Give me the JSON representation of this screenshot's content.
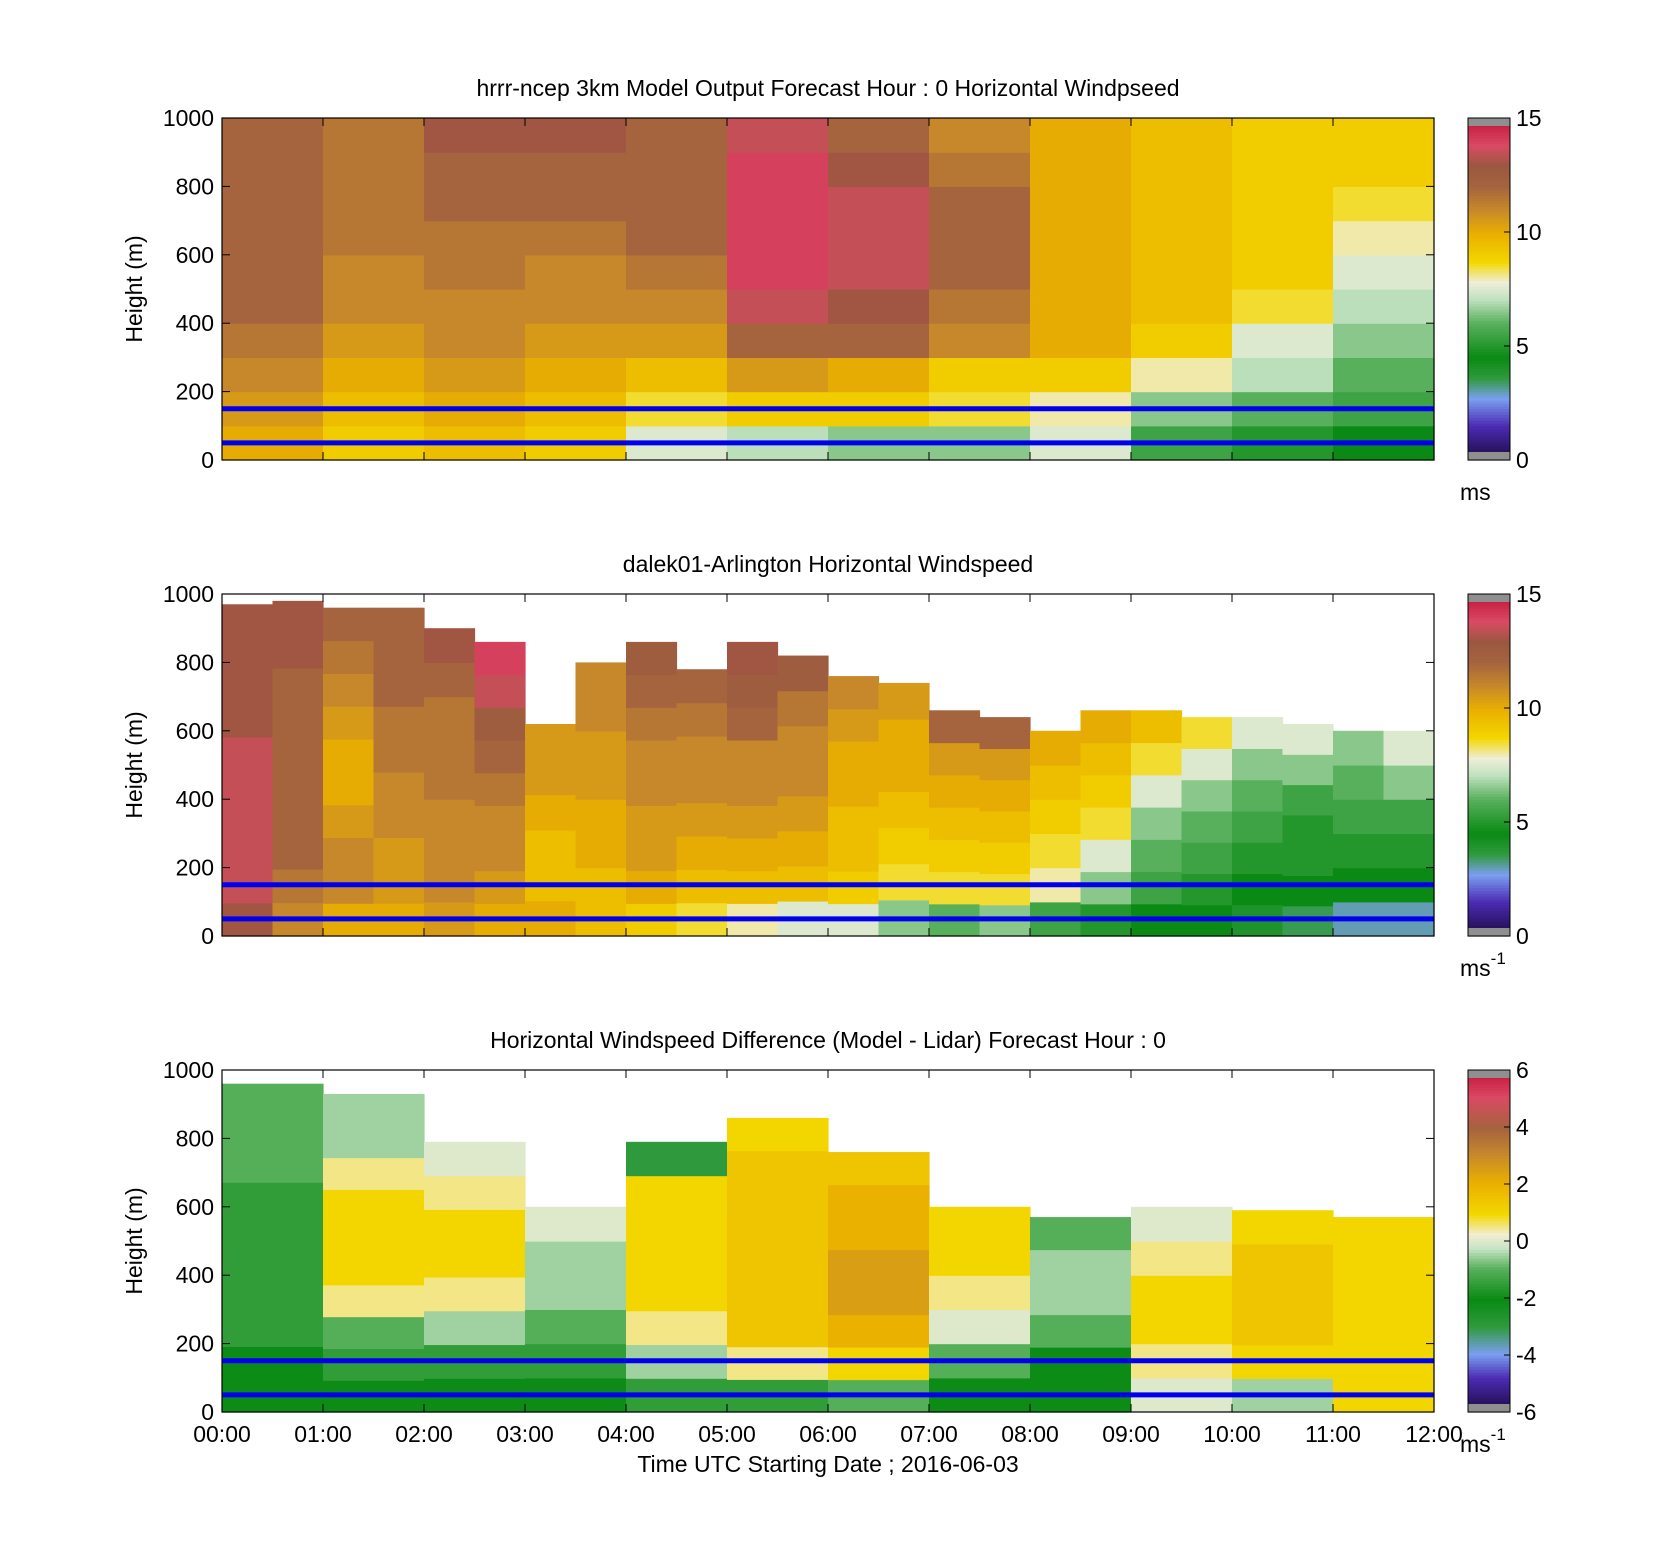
{
  "figure": {
    "xlabel": "Time UTC  Starting Date ; 2016-06-03",
    "x_ticks": [
      "00:00",
      "01:00",
      "02:00",
      "03:00",
      "04:00",
      "05:00",
      "06:00",
      "07:00",
      "08:00",
      "09:00",
      "10:00",
      "11:00",
      "12:00"
    ],
    "y_ticks": [
      "0",
      "200",
      "400",
      "600",
      "800",
      "1000"
    ],
    "reference_lines_m": [
      50,
      150
    ],
    "reference_line_color": "#0000ee"
  },
  "chart_data": [
    {
      "type": "heatmap",
      "title": "hrrr-ncep 3km Model Output   Forecast Hour : 0 Horizontal Windpseed",
      "ylabel": "Height (m)",
      "xlim_hours": [
        0,
        12
      ],
      "ylim": [
        0,
        1000
      ],
      "colorbar": {
        "min": 0,
        "max": 15,
        "ticks": [
          "0",
          "5",
          "10",
          "15"
        ],
        "unit": "ms",
        "unit_sup": "",
        "scale": "speed"
      },
      "columns": [
        {
          "hour": 0,
          "values": [
            10,
            10.5,
            11,
            11.5,
            12,
            12,
            12,
            12,
            12,
            12
          ]
        },
        {
          "hour": 1,
          "values": [
            9,
            9.5,
            10,
            10.5,
            11,
            11,
            11.5,
            11.5,
            11.5,
            11.5
          ]
        },
        {
          "hour": 2,
          "values": [
            9.5,
            10,
            10.5,
            11,
            11,
            11.5,
            11.5,
            12,
            12,
            13
          ]
        },
        {
          "hour": 3,
          "values": [
            9,
            9.5,
            10,
            10.5,
            11,
            11,
            11.5,
            12,
            12,
            13
          ]
        },
        {
          "hour": 4,
          "values": [
            7.5,
            8.5,
            9.5,
            10.5,
            11,
            11.5,
            12,
            12,
            12,
            12
          ]
        },
        {
          "hour": 5,
          "values": [
            7,
            9,
            10.5,
            12,
            13.5,
            14,
            14,
            14,
            14,
            13.5
          ]
        },
        {
          "hour": 6,
          "values": [
            6.5,
            9,
            10,
            12,
            13,
            13.5,
            13.5,
            13.5,
            13,
            12
          ]
        },
        {
          "hour": 7,
          "values": [
            6.5,
            8.5,
            9,
            11,
            11.5,
            12,
            12,
            12,
            11.5,
            11
          ]
        },
        {
          "hour": 8,
          "values": [
            7.5,
            8,
            9,
            10,
            10,
            10,
            10,
            10,
            10,
            10
          ]
        },
        {
          "hour": 9,
          "values": [
            5.5,
            6.5,
            8,
            9,
            9.5,
            9.5,
            9.5,
            9.5,
            9.5,
            9.5
          ]
        },
        {
          "hour": 10,
          "values": [
            5,
            6,
            7,
            7.5,
            8.5,
            9,
            9,
            9,
            9,
            9
          ]
        },
        {
          "hour": 11,
          "values": [
            4.5,
            5.5,
            6,
            6.5,
            7,
            7.5,
            8,
            8.5,
            9,
            9
          ]
        }
      ]
    },
    {
      "type": "heatmap",
      "title": "dalek01-Arlington  Horizontal Windspeed",
      "ylabel": "Height (m)",
      "xlim_hours": [
        0,
        12
      ],
      "ylim": [
        0,
        1000
      ],
      "colorbar": {
        "min": 0,
        "max": 15,
        "ticks": [
          "0",
          "5",
          "10",
          "15"
        ],
        "unit": "ms",
        "unit_sup": "-1",
        "scale": "speed"
      },
      "columns": [
        {
          "hour": 0.0,
          "top": 970,
          "values": [
            13,
            13.5,
            13.5,
            13.5,
            13.5,
            13.5,
            13,
            13,
            13,
            13
          ]
        },
        {
          "hour": 0.5,
          "top": 980,
          "values": [
            11,
            11.5,
            12,
            12,
            12,
            12,
            12,
            12,
            13,
            13
          ]
        },
        {
          "hour": 1.0,
          "top": 960,
          "values": [
            10,
            11,
            11,
            10.5,
            10,
            10,
            10.5,
            11,
            11.5,
            12
          ]
        },
        {
          "hour": 1.5,
          "top": 960,
          "values": [
            10,
            10.5,
            10.5,
            11,
            11,
            11.5,
            11.5,
            12,
            12,
            12
          ]
        },
        {
          "hour": 2.0,
          "top": 900,
          "values": [
            10.5,
            11,
            11,
            11,
            11.5,
            11.5,
            11.5,
            12,
            13
          ],
          "note": ""
        },
        {
          "hour": 2.5,
          "top": 860,
          "values": [
            10,
            10.5,
            11,
            11,
            11.5,
            12,
            12.5,
            13.5,
            14
          ]
        },
        {
          "hour": 3.0,
          "top": 620,
          "values": [
            10,
            9.5,
            9.5,
            10,
            10.5,
            10.5
          ]
        },
        {
          "hour": 3.5,
          "top": 800,
          "values": [
            9.5,
            9.5,
            10,
            10,
            10.5,
            10.5,
            11,
            11
          ]
        },
        {
          "hour": 4.0,
          "top": 860,
          "values": [
            9,
            10,
            10.5,
            10.5,
            11,
            11,
            11.5,
            12,
            12.5
          ]
        },
        {
          "hour": 4.5,
          "top": 780,
          "values": [
            8.5,
            9.5,
            10,
            10.5,
            11,
            11,
            11.5,
            12
          ]
        },
        {
          "hour": 5.0,
          "top": 860,
          "values": [
            8,
            9.5,
            10,
            10.5,
            11,
            11,
            12,
            12.5,
            13
          ]
        },
        {
          "hour": 5.5,
          "top": 820,
          "values": [
            7.5,
            9.5,
            10,
            10.5,
            11,
            11,
            11.5,
            12.5
          ]
        },
        {
          "hour": 6.0,
          "top": 760,
          "values": [
            7.5,
            9,
            9.5,
            9.5,
            10,
            10,
            10.5,
            11
          ]
        },
        {
          "hour": 6.5,
          "top": 740,
          "values": [
            6.5,
            8.5,
            9,
            9.5,
            10,
            10,
            10.5
          ]
        },
        {
          "hour": 7.0,
          "top": 660,
          "values": [
            6,
            8.5,
            9,
            9.5,
            10,
            10.5,
            12
          ]
        },
        {
          "hour": 7.5,
          "top": 640,
          "values": [
            6.5,
            8.5,
            9,
            9.5,
            10,
            10.5,
            12
          ]
        },
        {
          "hour": 8.0,
          "top": 600,
          "values": [
            5.5,
            8,
            8.5,
            9,
            9.5,
            10
          ]
        },
        {
          "hour": 8.5,
          "top": 660,
          "values": [
            5,
            6.5,
            7.5,
            8.5,
            9,
            9.5,
            10
          ]
        },
        {
          "hour": 9.0,
          "top": 660,
          "values": [
            4.5,
            5.5,
            6,
            6.5,
            7.5,
            8.5,
            9.5
          ]
        },
        {
          "hour": 9.5,
          "top": 640,
          "values": [
            4.5,
            5,
            5.5,
            6,
            6.5,
            7.5,
            8.5
          ]
        },
        {
          "hour": 10.0,
          "top": 640,
          "values": [
            4,
            4.5,
            5,
            5.5,
            6,
            6.5,
            7.5
          ]
        },
        {
          "hour": 10.5,
          "top": 620,
          "values": [
            3.5,
            4.5,
            5,
            5,
            5.5,
            6.5,
            7.5
          ]
        },
        {
          "hour": 11.0,
          "top": 600,
          "values": [
            3,
            4.5,
            5,
            5.5,
            6,
            6.5
          ]
        },
        {
          "hour": 11.5,
          "top": 600,
          "values": [
            3,
            4.5,
            5,
            5.5,
            6.5,
            7.5
          ]
        }
      ]
    },
    {
      "type": "heatmap",
      "title": "Horizontal Windspeed Difference (Model - Lidar) Forecast Hour : 0",
      "ylabel": "Height (m)",
      "xlabel": "Time UTC  Starting Date ; 2016-06-03",
      "xlim_hours": [
        0,
        12
      ],
      "ylim": [
        0,
        1000
      ],
      "colorbar": {
        "min": -6,
        "max": 6,
        "ticks": [
          "-6",
          "-4",
          "-2",
          "0",
          "2",
          "4",
          "6"
        ],
        "unit": "ms",
        "unit_sup": "-1",
        "scale": "diff"
      },
      "columns": [
        {
          "hour": 0,
          "top": 960,
          "values": [
            -2,
            -2,
            -1.5,
            -1.5,
            -1.5,
            -1.5,
            -1.5,
            -1,
            -1,
            -1
          ]
        },
        {
          "hour": 1,
          "top": 930,
          "values": [
            -2,
            -1.5,
            -1,
            0.5,
            1,
            1,
            1,
            0.5,
            -0.5,
            -0.5
          ]
        },
        {
          "hour": 2,
          "top": 790,
          "values": [
            -2,
            -1.5,
            -0.5,
            0.5,
            1,
            1,
            0.5,
            0
          ]
        },
        {
          "hour": 3,
          "top": 600,
          "values": [
            -2,
            -1.5,
            -1,
            -0.5,
            -0.5,
            0
          ]
        },
        {
          "hour": 4,
          "top": 790,
          "values": [
            -1.5,
            -0.5,
            0.5,
            1,
            1,
            1,
            1,
            -3
          ]
        },
        {
          "hour": 5,
          "top": 860,
          "values": [
            -1.5,
            0.5,
            1.5,
            1.5,
            1.5,
            1.5,
            1.5,
            1.5,
            1
          ]
        },
        {
          "hour": 6,
          "top": 760,
          "values": [
            -1,
            1,
            2,
            2.5,
            2.5,
            2,
            2,
            1.5
          ]
        },
        {
          "hour": 7,
          "top": 600,
          "values": [
            -2,
            -1,
            0,
            0.5,
            1,
            1
          ]
        },
        {
          "hour": 8,
          "top": 570,
          "values": [
            -2,
            -2,
            -1,
            -0.5,
            -0.5,
            -1
          ]
        },
        {
          "hour": 9,
          "top": 600,
          "values": [
            0,
            0.5,
            1,
            1,
            0.5,
            0
          ]
        },
        {
          "hour": 10,
          "top": 590,
          "values": [
            -0.5,
            1,
            1.5,
            1.5,
            1.5,
            1
          ]
        },
        {
          "hour": 11,
          "top": 570,
          "values": [
            1,
            1,
            1,
            1,
            1,
            1
          ]
        }
      ]
    }
  ]
}
